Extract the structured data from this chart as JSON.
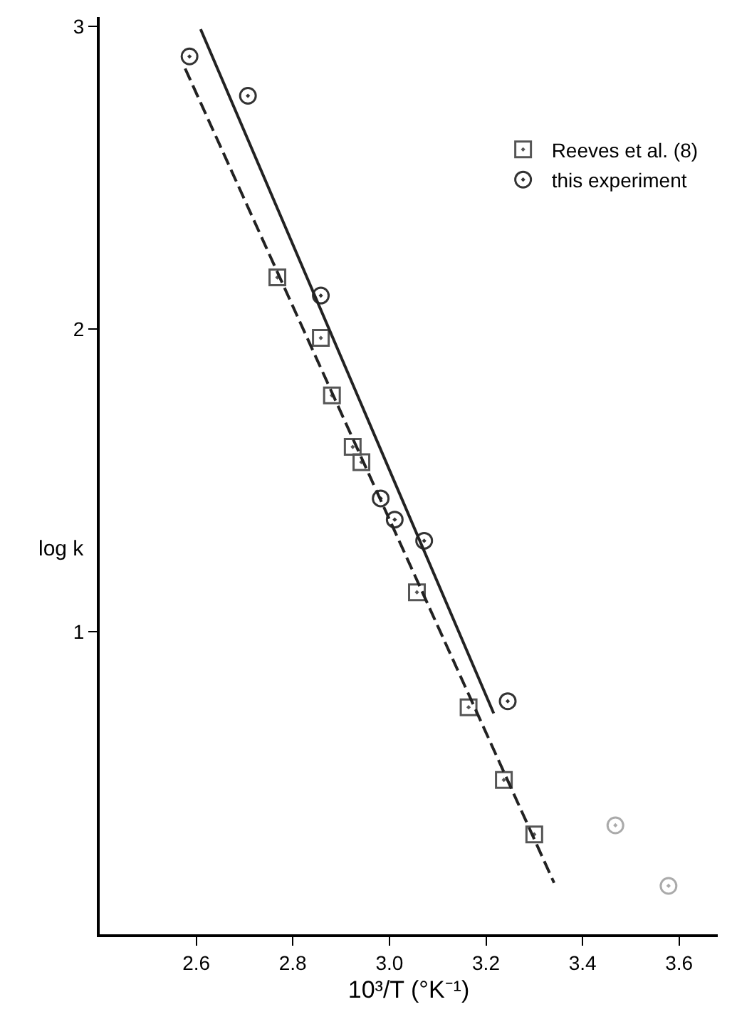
{
  "chart_data": {
    "type": "scatter",
    "xlabel": "10³/T (°K⁻¹)",
    "ylabel": "log k",
    "xlim": [
      2.4,
      3.68
    ],
    "ylim": [
      0,
      3.03
    ],
    "xticks": [
      2.6,
      2.8,
      {
        "value": 3,
        "label": "3.0"
      },
      3.2,
      3.4,
      3.6
    ],
    "yticks": [
      1,
      2,
      3
    ],
    "legend": "top right",
    "series": [
      {
        "name": "Reeves et al. (8)",
        "color": "#555555",
        "marker": "square",
        "x": [
          2.768,
          2.858,
          2.881,
          2.924,
          2.942,
          3.057,
          3.164,
          3.237,
          3.3
        ],
        "values": [
          2.17,
          1.97,
          1.78,
          1.61,
          1.56,
          1.13,
          0.75,
          0.51,
          0.33
        ]
      },
      {
        "name": "this experiment",
        "color": "#333333",
        "marker": "circle",
        "x": [
          2.586,
          2.707,
          2.858,
          2.982,
          3.011,
          3.072,
          3.245
        ],
        "values": [
          2.9,
          2.77,
          2.11,
          1.44,
          1.37,
          1.3,
          0.77
        ]
      },
      {
        "color": "#aaaaaa",
        "marker": "circle",
        "x": [
          3.468,
          3.578
        ],
        "values": [
          0.36,
          0.16
        ]
      },
      {
        "type": "line",
        "color": "#222222",
        "line_style": "solid",
        "marker": "none",
        "x": [
          2.609,
          3.216
        ],
        "values": [
          2.99,
          0.73
        ]
      },
      {
        "type": "line",
        "color": "#222222",
        "line_style": "dashed",
        "marker": "none",
        "x": [
          2.577,
          3.341
        ],
        "values": [
          2.86,
          0.17
        ]
      }
    ]
  }
}
